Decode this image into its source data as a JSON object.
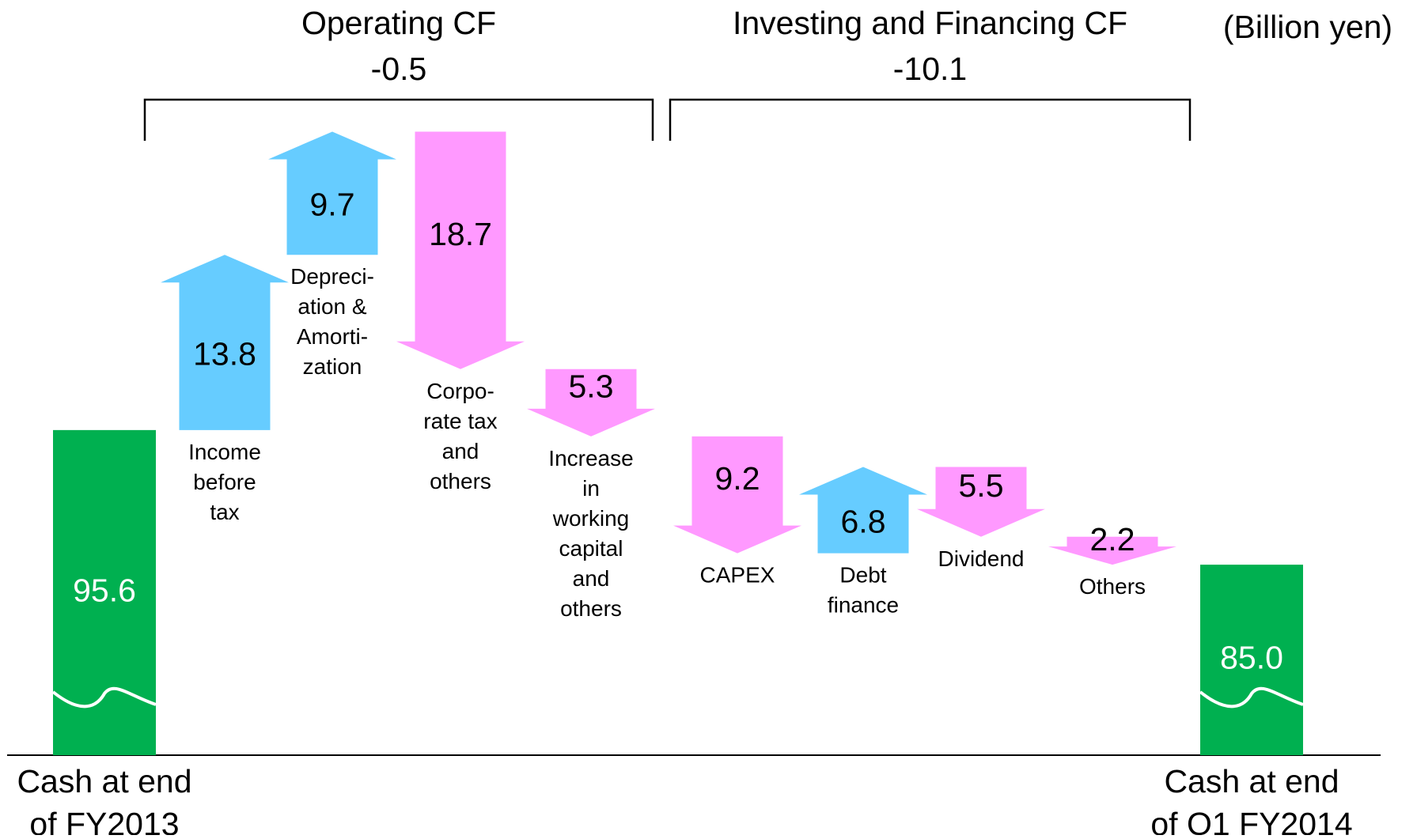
{
  "chart_data": {
    "type": "waterfall",
    "unit": "(Billion yen)",
    "groups": [
      {
        "title": "Operating CF",
        "total": -0.5
      },
      {
        "title": "Investing and Financing CF",
        "total": -10.1
      }
    ],
    "categories": [
      [
        "Cash at end",
        "of FY2013"
      ],
      [
        "Income",
        "before",
        "tax"
      ],
      [
        "Depreci-",
        "ation &",
        "Amorti-",
        "zation"
      ],
      [
        "Corpo-",
        "rate tax",
        "and",
        "others"
      ],
      [
        "Increase",
        "in",
        "working",
        "capital",
        "and",
        "others"
      ],
      [
        "CAPEX"
      ],
      [
        "Debt",
        "finance"
      ],
      [
        "Dividend"
      ],
      [
        "Others"
      ],
      [
        "Cash at end",
        "of Q1 FY2014"
      ]
    ],
    "measures": [
      "total",
      "relative",
      "relative",
      "relative",
      "relative",
      "relative",
      "relative",
      "relative",
      "relative",
      "total"
    ],
    "values": [
      95.6,
      13.8,
      9.7,
      -18.7,
      -5.3,
      -9.2,
      6.8,
      -5.5,
      -2.2,
      85.0
    ],
    "value_labels": [
      "95.6",
      "13.8",
      "9.7",
      "18.7",
      "5.3",
      "9.2",
      "6.8",
      "5.5",
      "2.2",
      "85.0"
    ],
    "colors": {
      "total": "#00b050",
      "increase": "#66ccff",
      "decrease": "#ff99ff"
    },
    "ylim": [
      70,
      120
    ]
  }
}
